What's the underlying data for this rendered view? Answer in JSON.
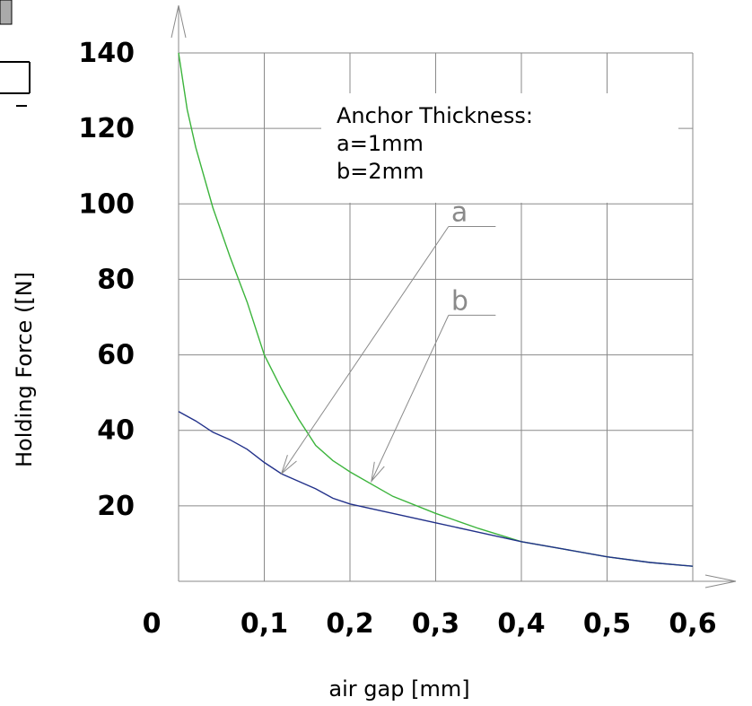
{
  "chart_data": {
    "type": "line",
    "xlabel": "air gap [mm]",
    "ylabel": "Holding Force  ([N]",
    "xlim": [
      0,
      0.6
    ],
    "ylim": [
      0,
      140
    ],
    "x_ticks": [
      {
        "value": 0,
        "label": "0"
      },
      {
        "value": 0.1,
        "label": "0,1"
      },
      {
        "value": 0.2,
        "label": "0,2"
      },
      {
        "value": 0.3,
        "label": "0,3"
      },
      {
        "value": 0.4,
        "label": "0,4"
      },
      {
        "value": 0.5,
        "label": "0,5"
      },
      {
        "value": 0.6,
        "label": "0,6"
      }
    ],
    "y_ticks": [
      {
        "value": 20,
        "label": "20"
      },
      {
        "value": 40,
        "label": "40"
      },
      {
        "value": 60,
        "label": "60"
      },
      {
        "value": 80,
        "label": "80"
      },
      {
        "value": 100,
        "label": "100"
      },
      {
        "value": 120,
        "label": "120"
      },
      {
        "value": 140,
        "label": "140"
      }
    ],
    "grid": true,
    "legend": {
      "position": "top-right",
      "lines": [
        "Anchor Thickness:",
        "a=1mm",
        "b=2mm"
      ]
    },
    "series": [
      {
        "name": "",
        "color": "#3cb43c",
        "points": [
          [
            0,
            140
          ],
          [
            0.01,
            125
          ],
          [
            0.02,
            115
          ],
          [
            0.04,
            99
          ],
          [
            0.06,
            86
          ],
          [
            0.08,
            74
          ],
          [
            0.1,
            60
          ],
          [
            0.12,
            51
          ],
          [
            0.14,
            43
          ],
          [
            0.16,
            36
          ],
          [
            0.18,
            32
          ],
          [
            0.2,
            29
          ],
          [
            0.25,
            22.5
          ],
          [
            0.3,
            18
          ],
          [
            0.35,
            14
          ],
          [
            0.4,
            10.5
          ],
          [
            0.45,
            8.5
          ],
          [
            0.5,
            6.5
          ],
          [
            0.55,
            5
          ],
          [
            0.6,
            4
          ]
        ]
      },
      {
        "name": "",
        "color": "#22318a",
        "points": [
          [
            0,
            45
          ],
          [
            0.02,
            42.5
          ],
          [
            0.04,
            39.5
          ],
          [
            0.06,
            37.5
          ],
          [
            0.08,
            35
          ],
          [
            0.1,
            31.5
          ],
          [
            0.12,
            28.5
          ],
          [
            0.14,
            26.5
          ],
          [
            0.16,
            24.5
          ],
          [
            0.18,
            22
          ],
          [
            0.2,
            20.5
          ],
          [
            0.25,
            18
          ],
          [
            0.3,
            15.5
          ],
          [
            0.35,
            13
          ],
          [
            0.4,
            10.5
          ],
          [
            0.45,
            8.5
          ],
          [
            0.5,
            6.5
          ],
          [
            0.55,
            5
          ],
          [
            0.6,
            4
          ]
        ]
      }
    ],
    "annotations": [
      {
        "label": "a",
        "text_at": [
          0.315,
          94
        ],
        "shelf_to": 0.37,
        "target": [
          0.12,
          28.5
        ]
      },
      {
        "label": "b",
        "text_at": [
          0.315,
          70.5
        ],
        "shelf_to": 0.37,
        "target": [
          0.225,
          26.5
        ]
      }
    ]
  }
}
